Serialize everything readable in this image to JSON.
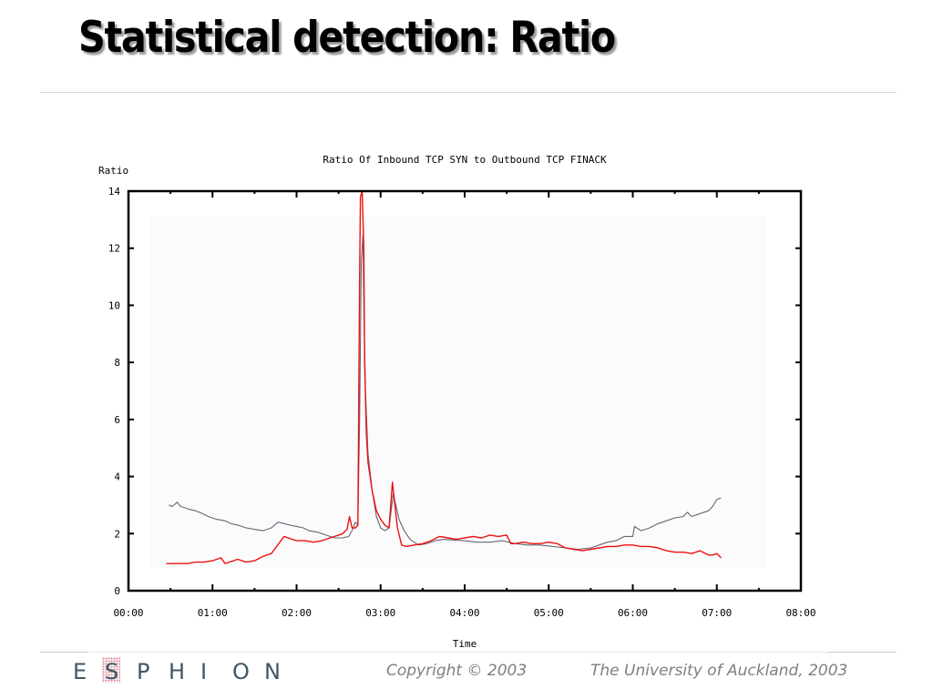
{
  "slide": {
    "title": "Statistical detection: Ratio"
  },
  "footer": {
    "logo_letters": [
      "E",
      "S",
      "P",
      "H",
      "I",
      "O",
      "N"
    ],
    "logo_text": "ESPHION",
    "copyright": "Copyright © 2003",
    "institution": "The University of Auckland, 2003"
  },
  "colors": {
    "series_red": "#ee1111",
    "series_gray": "#666677",
    "plot_background": "#fbfbfb",
    "logo": "#3d5766"
  },
  "chart_data": {
    "type": "line",
    "title": "Ratio Of Inbound TCP SYN to Outbound TCP FINACK",
    "xlabel": "Time",
    "ylabel": "Ratio",
    "xlim": [
      0,
      8
    ],
    "ylim": [
      0,
      14
    ],
    "x_unit": "hours",
    "xticks": [
      0,
      1,
      2,
      3,
      4,
      5,
      6,
      7,
      8
    ],
    "xtick_labels": [
      "00:00",
      "01:00",
      "02:00",
      "03:00",
      "04:00",
      "05:00",
      "06:00",
      "07:00",
      "08:00"
    ],
    "yticks": [
      0,
      2,
      4,
      6,
      8,
      10,
      12,
      14
    ],
    "ytick_labels": [
      "0",
      "2",
      "4",
      "6",
      "8",
      "10",
      "12",
      "14"
    ],
    "grid": false,
    "legend": "none",
    "series": [
      {
        "name": "gray",
        "color": "#666677",
        "x": [
          0.48,
          0.52,
          0.58,
          0.62,
          0.68,
          0.72,
          0.8,
          0.88,
          0.95,
          1.05,
          1.15,
          1.22,
          1.3,
          1.4,
          1.5,
          1.6,
          1.7,
          1.78,
          1.85,
          1.92,
          2.0,
          2.08,
          2.15,
          2.25,
          2.35,
          2.45,
          2.55,
          2.62,
          2.66,
          2.7,
          2.73,
          2.75,
          2.77,
          2.79,
          2.8,
          2.82,
          2.85,
          2.9,
          2.95,
          3.0,
          3.05,
          3.1,
          3.15,
          3.18,
          3.22,
          3.28,
          3.35,
          3.45,
          3.55,
          3.65,
          3.75,
          3.85,
          4.0,
          4.15,
          4.3,
          4.45,
          4.6,
          4.75,
          4.9,
          5.05,
          5.2,
          5.35,
          5.5,
          5.6,
          5.7,
          5.8,
          5.9,
          6.0,
          6.02,
          6.1,
          6.2,
          6.3,
          6.4,
          6.5,
          6.6,
          6.65,
          6.7,
          6.8,
          6.9,
          6.95,
          7.0,
          7.05
        ],
        "y": [
          3.0,
          2.95,
          3.1,
          2.95,
          2.9,
          2.85,
          2.8,
          2.7,
          2.6,
          2.5,
          2.45,
          2.35,
          2.3,
          2.2,
          2.15,
          2.1,
          2.2,
          2.4,
          2.35,
          2.3,
          2.25,
          2.2,
          2.1,
          2.05,
          1.95,
          1.85,
          1.85,
          1.9,
          2.1,
          2.4,
          2.3,
          6.0,
          11.5,
          12.5,
          10.0,
          7.0,
          4.8,
          3.5,
          2.6,
          2.2,
          2.1,
          2.2,
          3.4,
          3.0,
          2.5,
          2.1,
          1.8,
          1.6,
          1.65,
          1.75,
          1.8,
          1.78,
          1.75,
          1.7,
          1.7,
          1.75,
          1.65,
          1.6,
          1.6,
          1.55,
          1.5,
          1.45,
          1.5,
          1.6,
          1.7,
          1.75,
          1.9,
          1.9,
          2.25,
          2.1,
          2.2,
          2.35,
          2.45,
          2.55,
          2.6,
          2.75,
          2.6,
          2.7,
          2.8,
          2.95,
          3.2,
          3.25
        ]
      },
      {
        "name": "red",
        "color": "#ee1111",
        "x": [
          0.45,
          0.5,
          0.6,
          0.7,
          0.8,
          0.9,
          1.0,
          1.1,
          1.15,
          1.2,
          1.3,
          1.4,
          1.5,
          1.6,
          1.7,
          1.75,
          1.8,
          1.85,
          1.9,
          1.95,
          2.0,
          2.1,
          2.2,
          2.3,
          2.4,
          2.5,
          2.55,
          2.6,
          2.63,
          2.66,
          2.7,
          2.73,
          2.75,
          2.76,
          2.78,
          2.8,
          2.81,
          2.83,
          2.85,
          2.9,
          2.95,
          3.0,
          3.05,
          3.1,
          3.14,
          3.17,
          3.2,
          3.25,
          3.3,
          3.4,
          3.5,
          3.6,
          3.7,
          3.8,
          3.9,
          4.0,
          4.1,
          4.2,
          4.3,
          4.4,
          4.5,
          4.55,
          4.6,
          4.7,
          4.8,
          4.9,
          5.0,
          5.1,
          5.2,
          5.3,
          5.4,
          5.5,
          5.6,
          5.7,
          5.8,
          5.9,
          6.0,
          6.1,
          6.2,
          6.3,
          6.4,
          6.5,
          6.6,
          6.7,
          6.8,
          6.9,
          6.95,
          7.0,
          7.05
        ],
        "y": [
          0.95,
          0.95,
          0.95,
          0.95,
          1.0,
          1.0,
          1.05,
          1.15,
          0.95,
          1.0,
          1.1,
          1.0,
          1.05,
          1.2,
          1.3,
          1.5,
          1.7,
          1.9,
          1.85,
          1.8,
          1.75,
          1.75,
          1.7,
          1.75,
          1.85,
          1.95,
          2.0,
          2.15,
          2.6,
          2.2,
          2.2,
          2.3,
          11.0,
          13.8,
          14.0,
          12.0,
          8.0,
          5.5,
          4.5,
          3.5,
          2.8,
          2.5,
          2.3,
          2.2,
          3.8,
          3.0,
          2.2,
          1.6,
          1.55,
          1.6,
          1.65,
          1.75,
          1.9,
          1.85,
          1.8,
          1.85,
          1.9,
          1.85,
          1.95,
          1.9,
          1.95,
          1.65,
          1.65,
          1.7,
          1.65,
          1.65,
          1.7,
          1.65,
          1.5,
          1.45,
          1.4,
          1.45,
          1.5,
          1.55,
          1.55,
          1.6,
          1.6,
          1.55,
          1.55,
          1.5,
          1.4,
          1.35,
          1.35,
          1.3,
          1.4,
          1.25,
          1.25,
          1.3,
          1.15
        ]
      }
    ]
  }
}
